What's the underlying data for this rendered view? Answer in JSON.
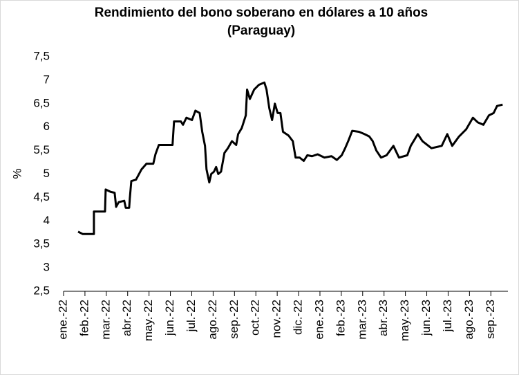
{
  "chart_data": {
    "type": "line",
    "title": [
      "Rendimiento del bono soberano en dólares a 10 años",
      "(Paraguay)"
    ],
    "y_label": "%",
    "x": [
      0.68,
      0.9,
      1.42,
      1.42,
      1.94,
      1.97,
      2.2,
      2.39,
      2.46,
      2.58,
      2.84,
      2.91,
      3.07,
      3.1,
      3.17,
      3.39,
      3.65,
      3.88,
      4.2,
      4.3,
      4.46,
      5.1,
      5.17,
      5.49,
      5.59,
      5.75,
      6.01,
      6.17,
      6.37,
      6.49,
      6.62,
      6.69,
      6.82,
      6.91,
      7.04,
      7.14,
      7.24,
      7.37,
      7.53,
      7.69,
      7.88,
      8.08,
      8.17,
      8.34,
      8.53,
      8.59,
      8.72,
      8.92,
      9.14,
      9.4,
      9.5,
      9.63,
      9.76,
      9.89,
      10.02,
      10.15,
      10.27,
      10.53,
      10.73,
      10.86,
      11.05,
      11.24,
      11.41,
      11.63,
      11.89,
      12.21,
      12.54,
      12.79,
      13.02,
      13.18,
      13.34,
      13.51,
      13.83,
      14.09,
      14.31,
      14.47,
      14.64,
      14.86,
      15.12,
      15.44,
      15.7,
      16.09,
      16.25,
      16.58,
      16.8,
      17.22,
      17.7,
      17.96,
      18.19,
      18.51,
      18.84,
      19.16,
      19.39,
      19.65,
      19.91,
      20.13,
      20.29,
      20.55
    ],
    "series": [
      {
        "color": "#000000",
        "values": [
          3.77,
          3.72,
          3.72,
          4.2,
          4.2,
          4.67,
          4.62,
          4.6,
          4.3,
          4.4,
          4.43,
          4.28,
          4.28,
          4.48,
          4.85,
          4.88,
          5.1,
          5.22,
          5.22,
          5.42,
          5.62,
          5.62,
          6.12,
          6.12,
          6.05,
          6.2,
          6.15,
          6.35,
          6.3,
          5.9,
          5.6,
          5.1,
          4.82,
          5.0,
          5.05,
          5.15,
          5.0,
          5.05,
          5.45,
          5.55,
          5.7,
          5.62,
          5.85,
          5.98,
          6.25,
          6.8,
          6.6,
          6.8,
          6.9,
          6.95,
          6.8,
          6.4,
          6.15,
          6.5,
          6.3,
          6.3,
          5.9,
          5.82,
          5.7,
          5.35,
          5.35,
          5.28,
          5.4,
          5.38,
          5.42,
          5.35,
          5.38,
          5.3,
          5.4,
          5.55,
          5.72,
          5.92,
          5.9,
          5.85,
          5.8,
          5.7,
          5.5,
          5.35,
          5.4,
          5.6,
          5.35,
          5.4,
          5.6,
          5.85,
          5.7,
          5.55,
          5.6,
          5.85,
          5.6,
          5.8,
          5.95,
          6.2,
          6.1,
          6.05,
          6.25,
          6.3,
          6.45,
          6.48
        ]
      }
    ],
    "xlim": [
      0,
      20.8
    ],
    "xticks": [
      {
        "value": 0,
        "label": "ene.-22"
      },
      {
        "value": 1,
        "label": "feb.-22"
      },
      {
        "value": 2,
        "label": "mar.-22"
      },
      {
        "value": 3,
        "label": "abr.-22"
      },
      {
        "value": 4,
        "label": "may.-22"
      },
      {
        "value": 5,
        "label": "jun.-22"
      },
      {
        "value": 6,
        "label": "jul.-22"
      },
      {
        "value": 7,
        "label": "ago.-22"
      },
      {
        "value": 8,
        "label": "sep.-22"
      },
      {
        "value": 9,
        "label": "oct.-22"
      },
      {
        "value": 10,
        "label": "nov.-22"
      },
      {
        "value": 11,
        "label": "dic.-22"
      },
      {
        "value": 12,
        "label": "ene.-23"
      },
      {
        "value": 13,
        "label": "feb.-23"
      },
      {
        "value": 14,
        "label": "mar.-23"
      },
      {
        "value": 15,
        "label": "abr.-23"
      },
      {
        "value": 16,
        "label": "may.-23"
      },
      {
        "value": 17,
        "label": "jun.-23"
      },
      {
        "value": 18,
        "label": "jul.-23"
      },
      {
        "value": 19,
        "label": "ago.-23"
      },
      {
        "value": 20,
        "label": "sep.-23"
      }
    ],
    "ylim": [
      2.5,
      7.5
    ],
    "yticks": [
      {
        "value": 2.5,
        "label": "2,5"
      },
      3,
      {
        "value": 3.5,
        "label": "3,5"
      },
      4,
      {
        "value": 4.5,
        "label": "4,5"
      },
      5,
      {
        "value": 5.5,
        "label": "5,5"
      },
      6,
      {
        "value": 6.5,
        "label": "6,5"
      },
      7,
      {
        "value": 7.5,
        "label": "7,5"
      }
    ],
    "grid": false
  }
}
